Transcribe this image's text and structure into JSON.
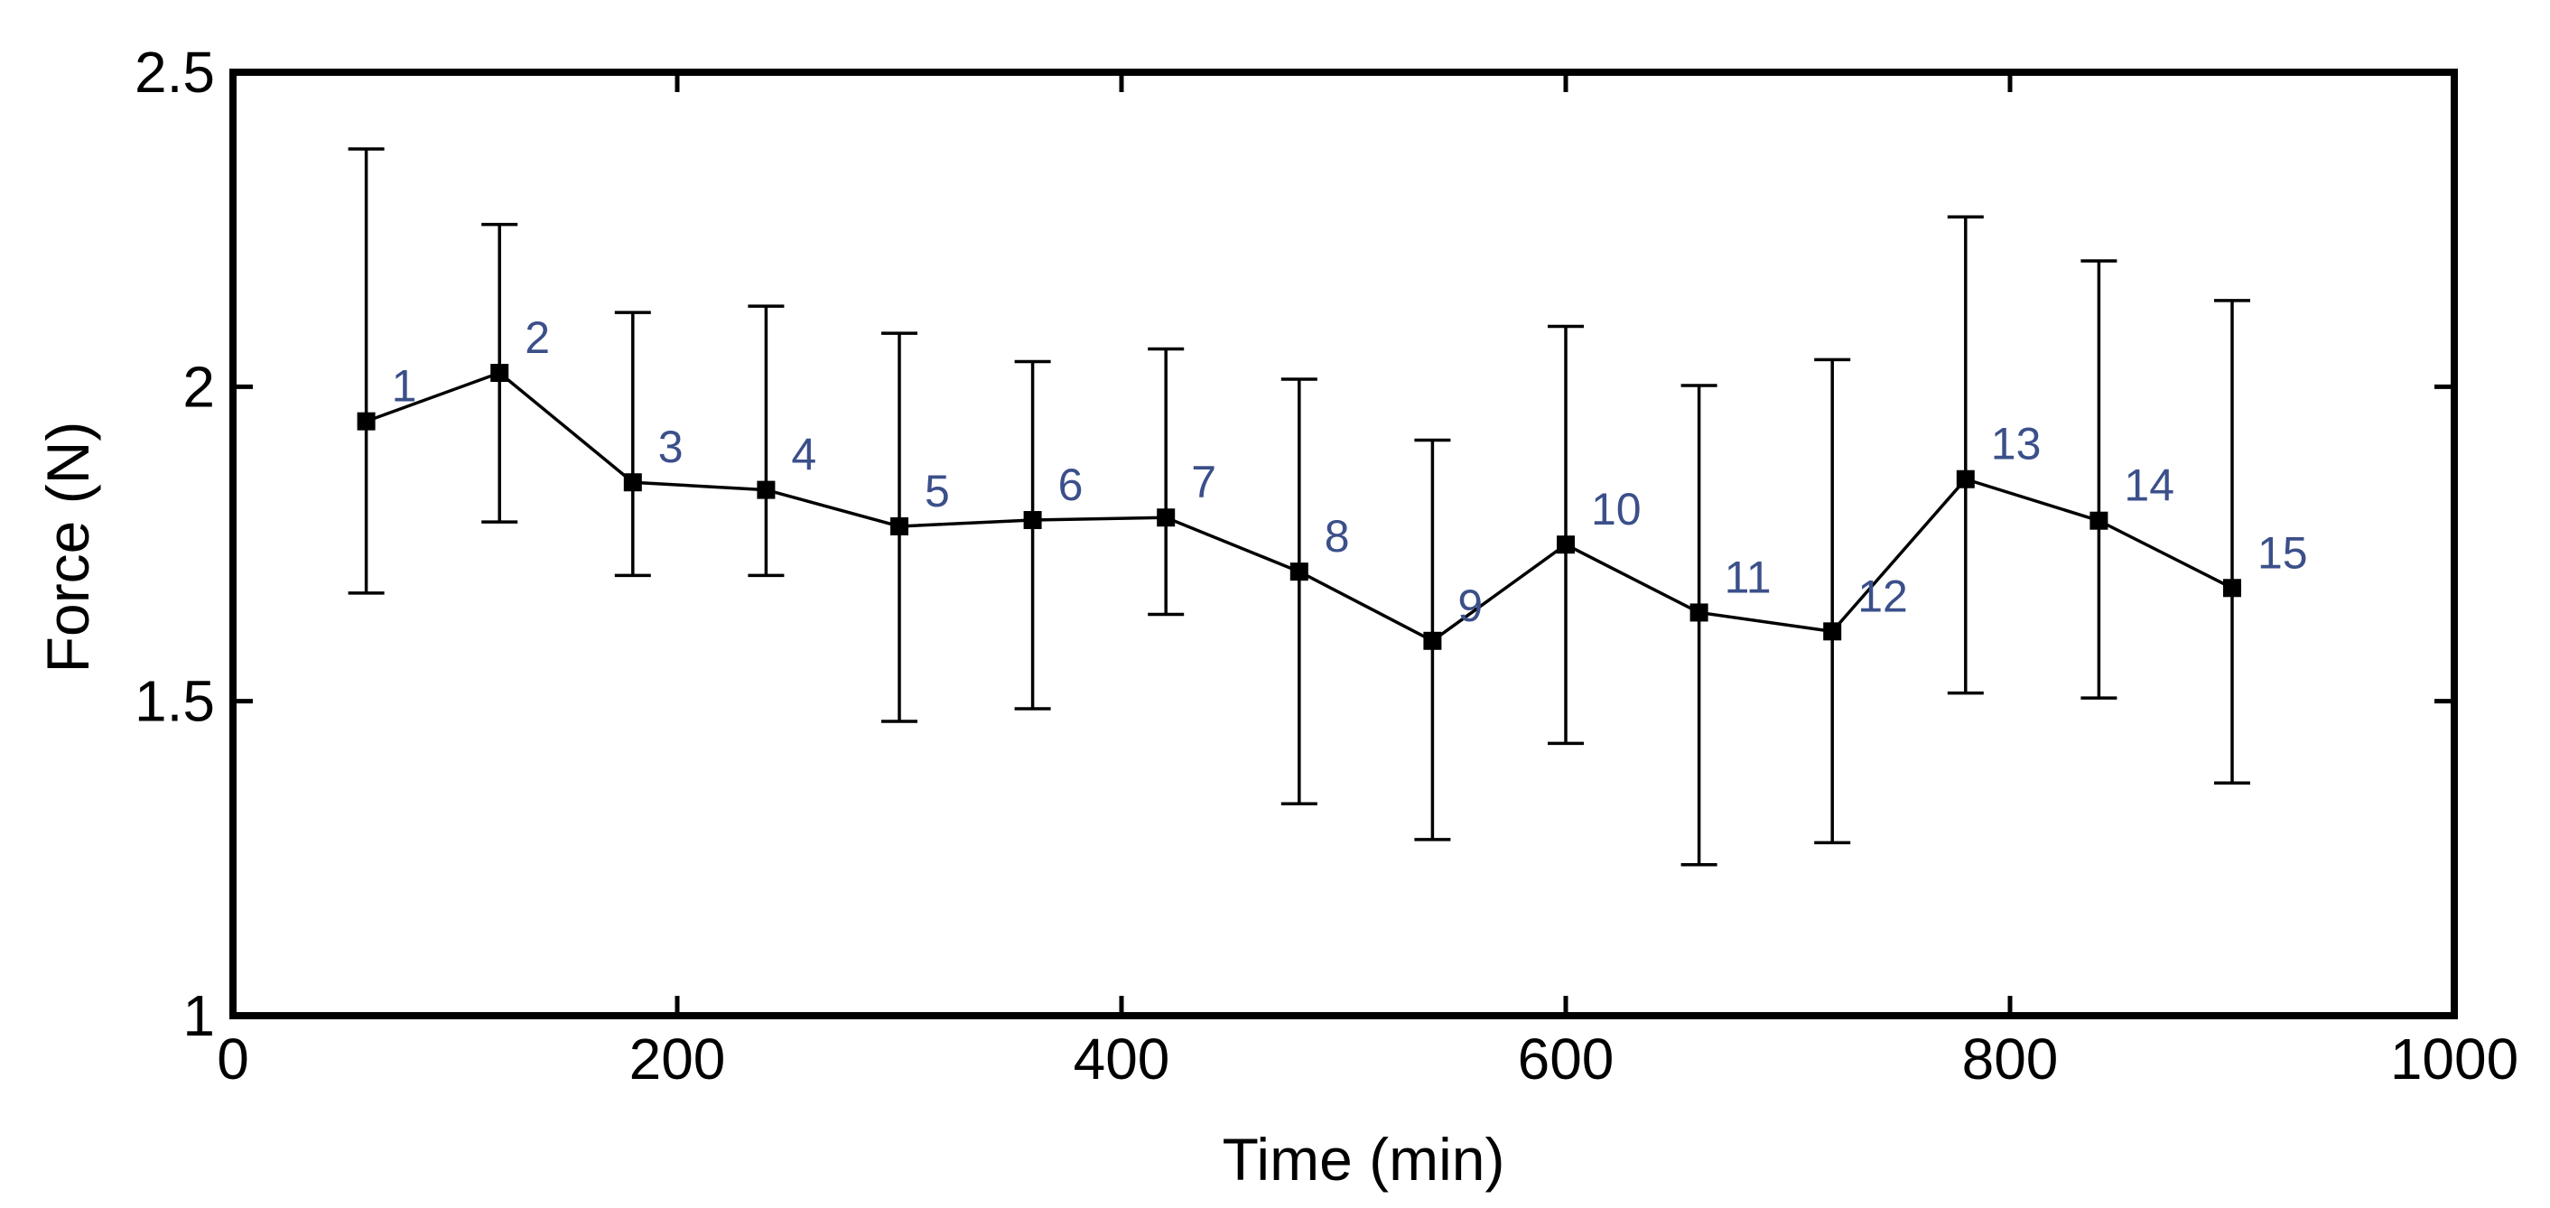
{
  "colors": {
    "axis": "#000000",
    "series": "#000000",
    "point_label": "#3b4f8a"
  },
  "chart_data": {
    "type": "line",
    "title": "",
    "xlabel": "Time (min)",
    "ylabel": "Force (N)",
    "xlim": [
      0,
      1000
    ],
    "ylim": [
      1,
      2.5
    ],
    "xticks": [
      0,
      200,
      400,
      600,
      800,
      1000
    ],
    "xtick_labels": [
      "0",
      "200",
      "400",
      "600",
      "800",
      "1000"
    ],
    "yticks": [
      1,
      1.5,
      2,
      2.5
    ],
    "ytick_labels": [
      "1",
      "1.5",
      "2",
      "2.5"
    ],
    "grid": false,
    "legend": "none",
    "series": [
      {
        "name": "Force",
        "marker": "square",
        "x": [
          60,
          120,
          180,
          240,
          300,
          360,
          420,
          480,
          540,
          600,
          660,
          720,
          780,
          840,
          900
        ],
        "y": [
          1.945,
          2.022,
          1.848,
          1.836,
          1.778,
          1.788,
          1.792,
          1.706,
          1.596,
          1.749,
          1.641,
          1.611,
          1.853,
          1.787,
          1.68
        ],
        "err_low": [
          1.672,
          1.785,
          1.7,
          1.7,
          1.468,
          1.488,
          1.638,
          1.337,
          1.28,
          1.433,
          1.24,
          1.275,
          1.513,
          1.505,
          1.37
        ],
        "err_high": [
          2.378,
          2.258,
          2.118,
          2.128,
          2.085,
          2.04,
          2.06,
          2.012,
          1.915,
          2.096,
          2.002,
          2.043,
          2.27,
          2.2,
          2.137
        ],
        "point_labels": [
          "1",
          "2",
          "3",
          "4",
          "5",
          "6",
          "7",
          "8",
          "9",
          "10",
          "11",
          "12",
          "13",
          "14",
          "15"
        ]
      }
    ]
  }
}
